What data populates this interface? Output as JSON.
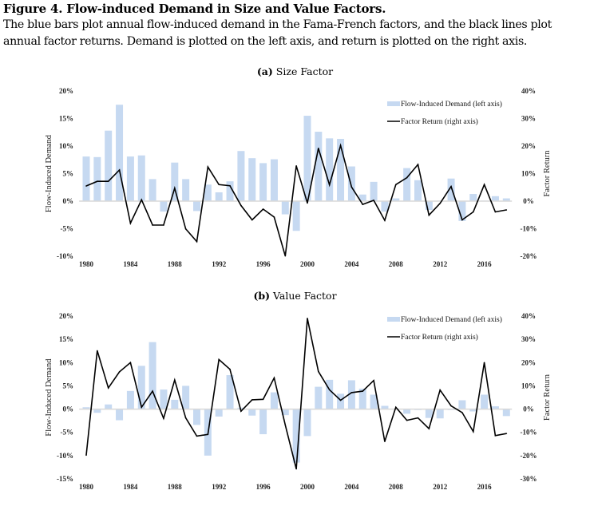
{
  "figure": {
    "title": "Figure 4. Flow-induced Demand in Size and Value Factors.",
    "caption": "The blue bars plot annual flow-induced demand in the Fama-French factors, and the black lines plot annual factor returns. Demand is plotted on the left axis, and return is plotted on the right axis."
  },
  "colors": {
    "bar": "#c6d9f1",
    "line": "#000000",
    "zero_line": "#d9d9d9"
  },
  "chart_data": [
    {
      "panel_label": "(a)",
      "title": "Size Factor",
      "type": "bar+line",
      "x": [
        1980,
        1981,
        1982,
        1983,
        1984,
        1985,
        1986,
        1987,
        1988,
        1989,
        1990,
        1991,
        1992,
        1993,
        1994,
        1995,
        1996,
        1997,
        1998,
        1999,
        2000,
        2001,
        2002,
        2003,
        2004,
        2005,
        2006,
        2007,
        2008,
        2009,
        2010,
        2011,
        2012,
        2013,
        2014,
        2015,
        2016,
        2017,
        2018
      ],
      "xticks": [
        "1980",
        "1984",
        "1988",
        "1992",
        "1996",
        "2000",
        "2004",
        "2008",
        "2012",
        "2016"
      ],
      "ylabel_left": "Flow-Induced Demand",
      "ylabel_right": "Factor Return",
      "ylim_left": [
        -10,
        20
      ],
      "ylim_right": [
        -20,
        40
      ],
      "yticks_left": [
        "20%",
        "15%",
        "10%",
        "5%",
        "0%",
        "-5%",
        "-10%"
      ],
      "yticks_right": [
        "40%",
        "30%",
        "20%",
        "10%",
        "0%",
        "-10%",
        "-20%"
      ],
      "legend_position": "top-right",
      "series": [
        {
          "name": "Flow-Induced Demand (left axis)",
          "kind": "bar",
          "axis": "left",
          "values": [
            8.1,
            8.0,
            12.8,
            17.5,
            8.1,
            8.3,
            4.0,
            -1.9,
            7.0,
            4.0,
            -1.8,
            3.0,
            1.6,
            3.6,
            9.1,
            7.8,
            6.9,
            7.6,
            -2.4,
            -5.4,
            15.5,
            12.6,
            11.4,
            11.3,
            6.3,
            1.2,
            3.5,
            -1.9,
            0.5,
            6.0,
            3.8,
            -1.6,
            0.1,
            4.1,
            -3.6,
            1.3,
            0.1,
            0.9,
            0.5
          ]
        },
        {
          "name": "Factor Return (right axis)",
          "kind": "line",
          "axis": "right",
          "values": [
            5.5,
            7.2,
            7.2,
            11.3,
            -8.0,
            0.5,
            -8.7,
            -8.7,
            4.7,
            -10.1,
            -14.7,
            12.4,
            6.0,
            5.6,
            -1.6,
            -6.8,
            -2.9,
            -5.8,
            -19.9,
            12.8,
            -0.7,
            19.2,
            5.9,
            20.2,
            5.1,
            -1.2,
            0.3,
            -7.0,
            6.0,
            8.5,
            13.3,
            -5.1,
            -0.8,
            5.3,
            -6.8,
            -3.9,
            6.0,
            -3.9,
            -3.2
          ]
        }
      ]
    },
    {
      "panel_label": "(b)",
      "title": "Value Factor",
      "type": "bar+line",
      "x": [
        1980,
        1981,
        1982,
        1983,
        1984,
        1985,
        1986,
        1987,
        1988,
        1989,
        1990,
        1991,
        1992,
        1993,
        1994,
        1995,
        1996,
        1997,
        1998,
        1999,
        2000,
        2001,
        2002,
        2003,
        2004,
        2005,
        2006,
        2007,
        2008,
        2009,
        2010,
        2011,
        2012,
        2013,
        2014,
        2015,
        2016,
        2017,
        2018
      ],
      "xticks": [
        "1980",
        "1984",
        "1988",
        "1992",
        "1996",
        "2000",
        "2004",
        "2008",
        "2012",
        "2016"
      ],
      "ylabel_left": "Flow-Induced Demand",
      "ylabel_right": "Factor Return",
      "ylim_left": [
        -15,
        20
      ],
      "ylim_right": [
        -30,
        40
      ],
      "yticks_left": [
        "20%",
        "15%",
        "10%",
        "5%",
        "0%",
        "-5%",
        "-10%",
        "-15%"
      ],
      "yticks_right": [
        "40%",
        "30%",
        "20%",
        "10%",
        "0%",
        "-10%",
        "-20%",
        "-30%"
      ],
      "legend_position": "top-right",
      "series": [
        {
          "name": "Flow-Induced Demand (left axis)",
          "kind": "bar",
          "axis": "left",
          "values": [
            0.4,
            -0.8,
            1.0,
            -2.4,
            3.9,
            9.3,
            14.4,
            4.2,
            2.0,
            5.0,
            -3.4,
            -10.0,
            -1.6,
            7.3,
            0.3,
            -1.4,
            -5.4,
            3.6,
            -1.3,
            -11.5,
            -5.8,
            4.8,
            6.3,
            3.3,
            6.2,
            4.4,
            3.1,
            0.7,
            0.1,
            -1.0,
            -0.2,
            -1.9,
            -2.0,
            -0.2,
            1.9,
            -0.5,
            3.1,
            0.6,
            -1.5
          ]
        },
        {
          "name": "Factor Return (right axis)",
          "kind": "line",
          "axis": "right",
          "values": [
            -19.8,
            25.1,
            9.1,
            16.0,
            20.0,
            0.8,
            7.7,
            -4.0,
            12.5,
            -3.8,
            -11.6,
            -10.9,
            21.3,
            17.1,
            -0.9,
            4.0,
            4.2,
            13.4,
            -6.8,
            -25.7,
            39.0,
            16.2,
            8.3,
            3.8,
            7.1,
            7.7,
            12.3,
            -13.9,
            0.8,
            -4.8,
            -3.8,
            -8.4,
            8.2,
            1.4,
            -1.5,
            -9.7,
            20.0,
            -11.4,
            -10.5
          ]
        }
      ]
    }
  ]
}
